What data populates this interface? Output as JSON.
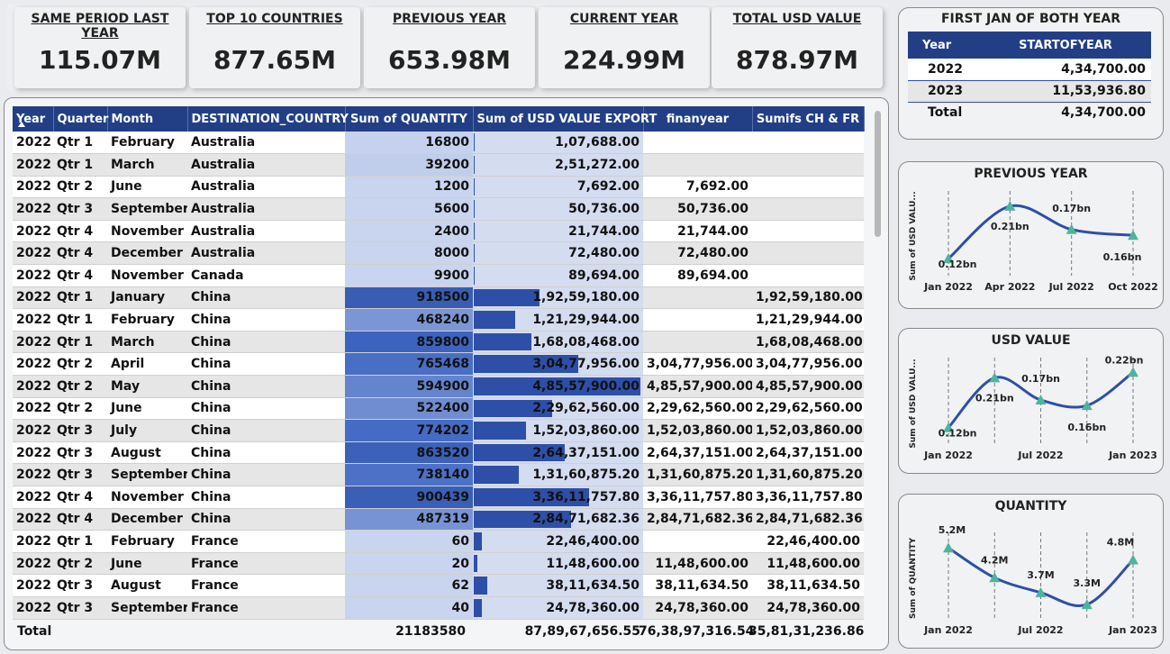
{
  "kpis": [
    {
      "label": "SAME PERIOD LAST YEAR",
      "value": "115.07M"
    },
    {
      "label": "TOP 10 COUNTRIES",
      "value": "877.65M"
    },
    {
      "label": "PREVIOUS YEAR",
      "value": "653.98M"
    },
    {
      "label": "CURRENT YEAR",
      "value": "224.99M"
    },
    {
      "label": "TOTAL USD VALUE",
      "value": "878.97M"
    }
  ],
  "table": {
    "headers": [
      "Year",
      "Quarter",
      "Month",
      "DESTINATION_COUNTRY",
      "Sum of QUANTITY",
      "Sum of USD VALUE EXPORT",
      "finanyear",
      "Sumifs CH & FR"
    ],
    "rows": [
      [
        "2022",
        "Qtr 1",
        "February",
        "Australia",
        "16800",
        "1,07,688.00",
        "",
        ""
      ],
      [
        "2022",
        "Qtr 1",
        "March",
        "Australia",
        "39200",
        "2,51,272.00",
        "",
        ""
      ],
      [
        "2022",
        "Qtr 2",
        "June",
        "Australia",
        "1200",
        "7,692.00",
        "7,692.00",
        ""
      ],
      [
        "2022",
        "Qtr 3",
        "September",
        "Australia",
        "5600",
        "50,736.00",
        "50,736.00",
        ""
      ],
      [
        "2022",
        "Qtr 4",
        "November",
        "Australia",
        "2400",
        "21,744.00",
        "21,744.00",
        ""
      ],
      [
        "2022",
        "Qtr 4",
        "December",
        "Australia",
        "8000",
        "72,480.00",
        "72,480.00",
        ""
      ],
      [
        "2022",
        "Qtr 4",
        "November",
        "Canada",
        "9900",
        "89,694.00",
        "89,694.00",
        ""
      ],
      [
        "2022",
        "Qtr 1",
        "January",
        "China",
        "918500",
        "1,92,59,180.00",
        "",
        "1,92,59,180.00"
      ],
      [
        "2022",
        "Qtr 1",
        "February",
        "China",
        "468240",
        "1,21,29,944.00",
        "",
        "1,21,29,944.00"
      ],
      [
        "2022",
        "Qtr 1",
        "March",
        "China",
        "859800",
        "1,68,08,468.00",
        "",
        "1,68,08,468.00"
      ],
      [
        "2022",
        "Qtr 2",
        "April",
        "China",
        "765468",
        "3,04,77,956.00",
        "3,04,77,956.00",
        "3,04,77,956.00"
      ],
      [
        "2022",
        "Qtr 2",
        "May",
        "China",
        "594900",
        "4,85,57,900.00",
        "4,85,57,900.00",
        "4,85,57,900.00"
      ],
      [
        "2022",
        "Qtr 2",
        "June",
        "China",
        "522400",
        "2,29,62,560.00",
        "2,29,62,560.00",
        "2,29,62,560.00"
      ],
      [
        "2022",
        "Qtr 3",
        "July",
        "China",
        "774202",
        "1,52,03,860.00",
        "1,52,03,860.00",
        "1,52,03,860.00"
      ],
      [
        "2022",
        "Qtr 3",
        "August",
        "China",
        "863520",
        "2,64,37,151.00",
        "2,64,37,151.00",
        "2,64,37,151.00"
      ],
      [
        "2022",
        "Qtr 3",
        "September",
        "China",
        "738140",
        "1,31,60,875.20",
        "1,31,60,875.20",
        "1,31,60,875.20"
      ],
      [
        "2022",
        "Qtr 4",
        "November",
        "China",
        "900439",
        "3,36,11,757.80",
        "3,36,11,757.80",
        "3,36,11,757.80"
      ],
      [
        "2022",
        "Qtr 4",
        "December",
        "China",
        "487319",
        "2,84,71,682.36",
        "2,84,71,682.36",
        "2,84,71,682.36"
      ],
      [
        "2022",
        "Qtr 1",
        "February",
        "France",
        "60",
        "22,46,400.00",
        "",
        "22,46,400.00"
      ],
      [
        "2022",
        "Qtr 2",
        "June",
        "France",
        "20",
        "11,48,600.00",
        "11,48,600.00",
        "11,48,600.00"
      ],
      [
        "2022",
        "Qtr 3",
        "August",
        "France",
        "62",
        "38,11,634.50",
        "38,11,634.50",
        "38,11,634.50"
      ],
      [
        "2022",
        "Qtr 3",
        "September",
        "France",
        "40",
        "24,78,360.00",
        "24,78,360.00",
        "24,78,360.00"
      ]
    ],
    "total": {
      "label": "Total",
      "quantity": "21183580",
      "usd": "87,89,67,656.55",
      "finanyear": "76,38,97,316.54",
      "sumifs": "35,81,31,236.86"
    }
  },
  "first_jan": {
    "title": "FIRST JAN OF BOTH YEAR",
    "headers": [
      "Year",
      "STARTOFYEAR"
    ],
    "rows": [
      [
        "2022",
        "4,34,700.00"
      ],
      [
        "2023",
        "11,53,936.80"
      ]
    ],
    "total": [
      "Total",
      "4,34,700.00"
    ]
  },
  "chart_data": [
    {
      "type": "line",
      "title": "PREVIOUS YEAR",
      "ylabel": "Sum of USD VALU...",
      "xlabel": "",
      "x": [
        "Jan 2022",
        "Apr 2022",
        "Jul 2022",
        "Oct 2022"
      ],
      "series": [
        {
          "values": [
            0.12,
            0.21,
            0.17,
            0.16
          ]
        }
      ],
      "data_labels": [
        "0.12bn",
        "0.21bn",
        "0.17bn",
        "0.16bn"
      ],
      "ylim": [
        0.1,
        0.23
      ]
    },
    {
      "type": "line",
      "title": "USD VALUE",
      "ylabel": "Sum of USD VALU...",
      "xlabel": "",
      "x": [
        "",
        "",
        "",
        "",
        ""
      ],
      "tick_labels": [
        "Jan 2022",
        "Jul 2022",
        "Jan 2023"
      ],
      "series": [
        {
          "values": [
            0.12,
            0.21,
            0.17,
            0.16,
            0.22
          ]
        }
      ],
      "data_labels": [
        "0.12bn",
        "0.21bn",
        "0.17bn",
        "0.16bn",
        "0.22bn"
      ],
      "ylim": [
        0.1,
        0.24
      ]
    },
    {
      "type": "line",
      "title": "QUANTITY",
      "ylabel": "Sum of QUANTITY",
      "xlabel": "",
      "x": [
        "",
        "",
        "",
        "",
        ""
      ],
      "tick_labels": [
        "Jan 2022",
        "Jul 2022",
        "Jan 2023"
      ],
      "series": [
        {
          "values": [
            5.2,
            4.2,
            3.7,
            3.3,
            4.8
          ]
        }
      ],
      "data_labels": [
        "5.2M",
        "4.2M",
        "3.7M",
        "3.3M",
        "4.8M"
      ],
      "ylim": [
        3.0,
        5.6
      ]
    }
  ],
  "colors": {
    "header": "#223f86",
    "bar": "#2e4fa8",
    "line": "#2e4fa8",
    "marker": "#4fb3a0"
  }
}
